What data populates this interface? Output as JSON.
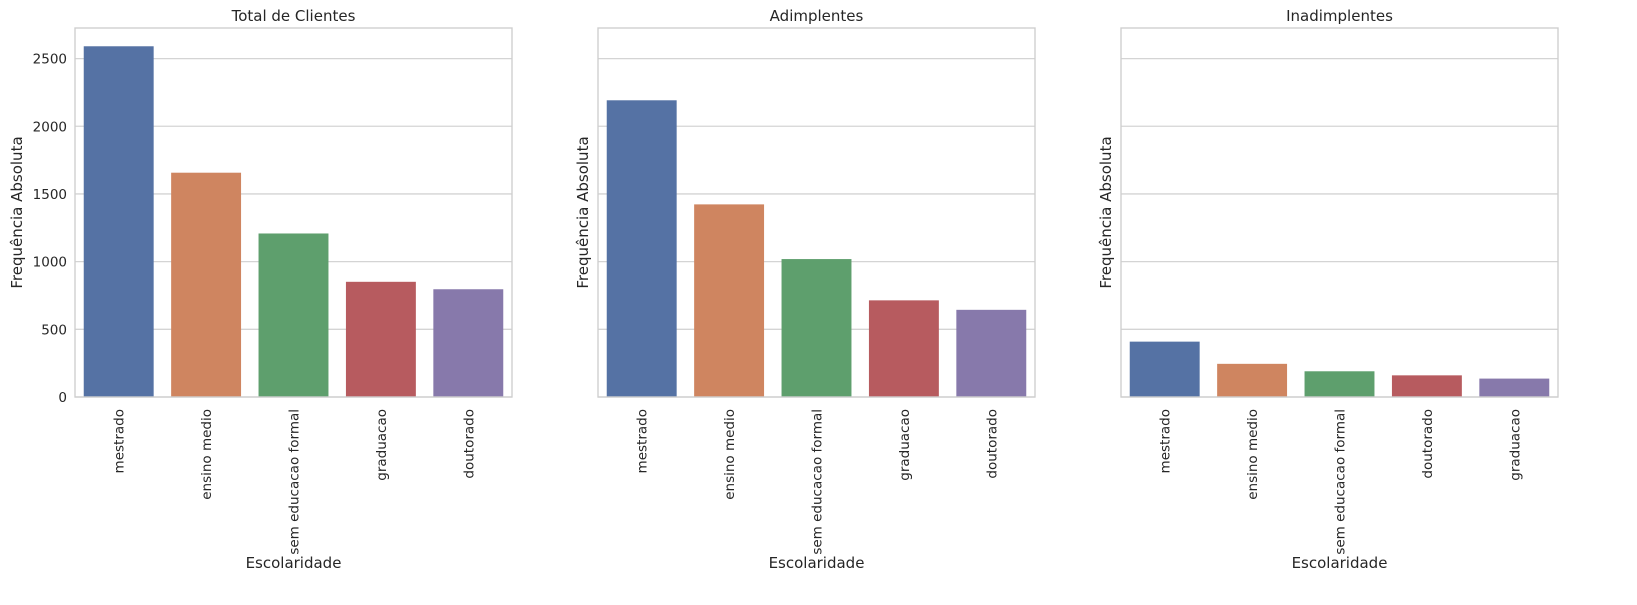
{
  "chart_data": [
    {
      "type": "bar",
      "title": "Total de Clientes",
      "xlabel": "Escolaridade",
      "ylabel": "Frequência Absoluta",
      "categories": [
        "mestrado",
        "ensino medio",
        "sem educacao formal",
        "graduacao",
        "doutorado"
      ],
      "values": [
        2591,
        1657,
        1208,
        851,
        796
      ],
      "ylim": [
        0,
        2726
      ],
      "yticks": [
        0,
        500,
        1000,
        1500,
        2000,
        2500
      ],
      "show_ytick_labels": true,
      "grid": true
    },
    {
      "type": "bar",
      "title": "Adimplentes",
      "xlabel": "Escolaridade",
      "ylabel": "Frequência Absoluta",
      "categories": [
        "mestrado",
        "ensino medio",
        "sem educacao formal",
        "graduacao",
        "doutorado"
      ],
      "values": [
        2192,
        1423,
        1019,
        714,
        644
      ],
      "ylim": [
        0,
        2726
      ],
      "yticks": [
        0,
        500,
        1000,
        1500,
        2000,
        2500
      ],
      "show_ytick_labels": false,
      "grid": true
    },
    {
      "type": "bar",
      "title": "Inadimplentes",
      "xlabel": "Escolaridade",
      "ylabel": "Frequência Absoluta",
      "categories": [
        "mestrado",
        "ensino medio",
        "sem educacao formal",
        "doutorado",
        "graduacao"
      ],
      "values": [
        409,
        245,
        190,
        160,
        136
      ],
      "ylim": [
        0,
        2726
      ],
      "yticks": [
        0,
        500,
        1000,
        1500,
        2000,
        2500
      ],
      "show_ytick_labels": false,
      "grid": true
    }
  ],
  "colors": {
    "bars": [
      "#5572a4",
      "#cf8560",
      "#5e9f6d",
      "#b75b5f",
      "#8779ab"
    ],
    "grid": "#d4d4d4",
    "frame": "#cfcfcf",
    "text": "#262626"
  }
}
